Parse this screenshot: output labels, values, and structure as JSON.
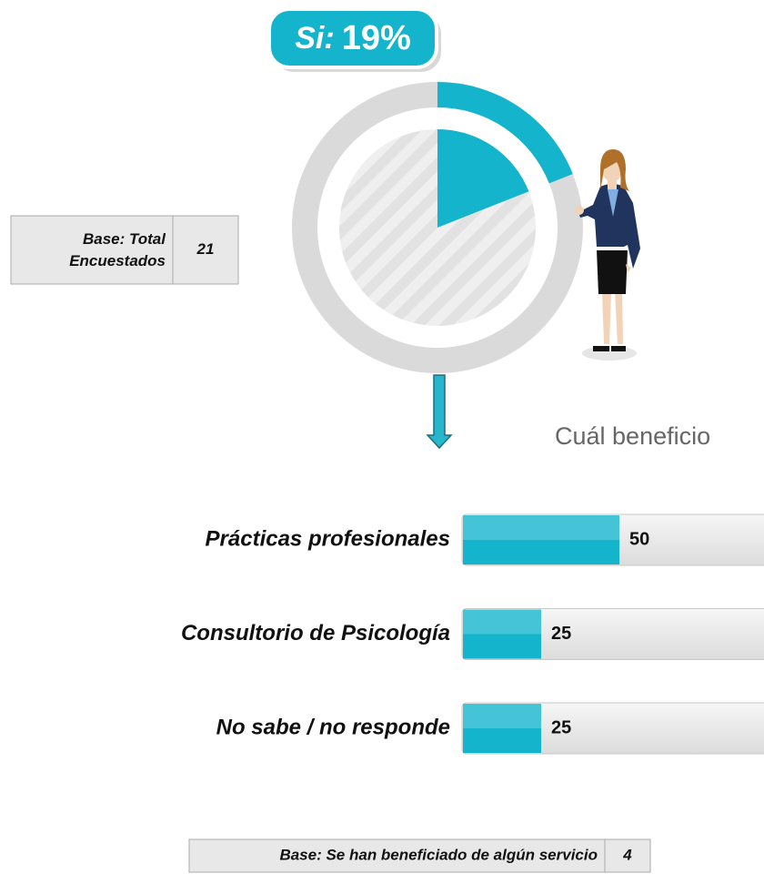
{
  "chart_data": [
    {
      "type": "donut",
      "category": "Si:",
      "values": [
        19
      ],
      "value_labels": [
        "19%"
      ],
      "color": "#13b4cc"
    },
    {
      "type": "bar",
      "title": "Cuál beneficio",
      "categories": [
        "Prácticas profesionales",
        "Consultorio de Psicología",
        "No sabe / no responde"
      ],
      "values": [
        50,
        25,
        25
      ],
      "color": "#13b4cc"
    }
  ],
  "base_tables": [
    {
      "label": "Base: Total Encuestados",
      "value": 21
    },
    {
      "label": "Base: Se han beneficiado de algún servicio",
      "value": 4
    }
  ]
}
